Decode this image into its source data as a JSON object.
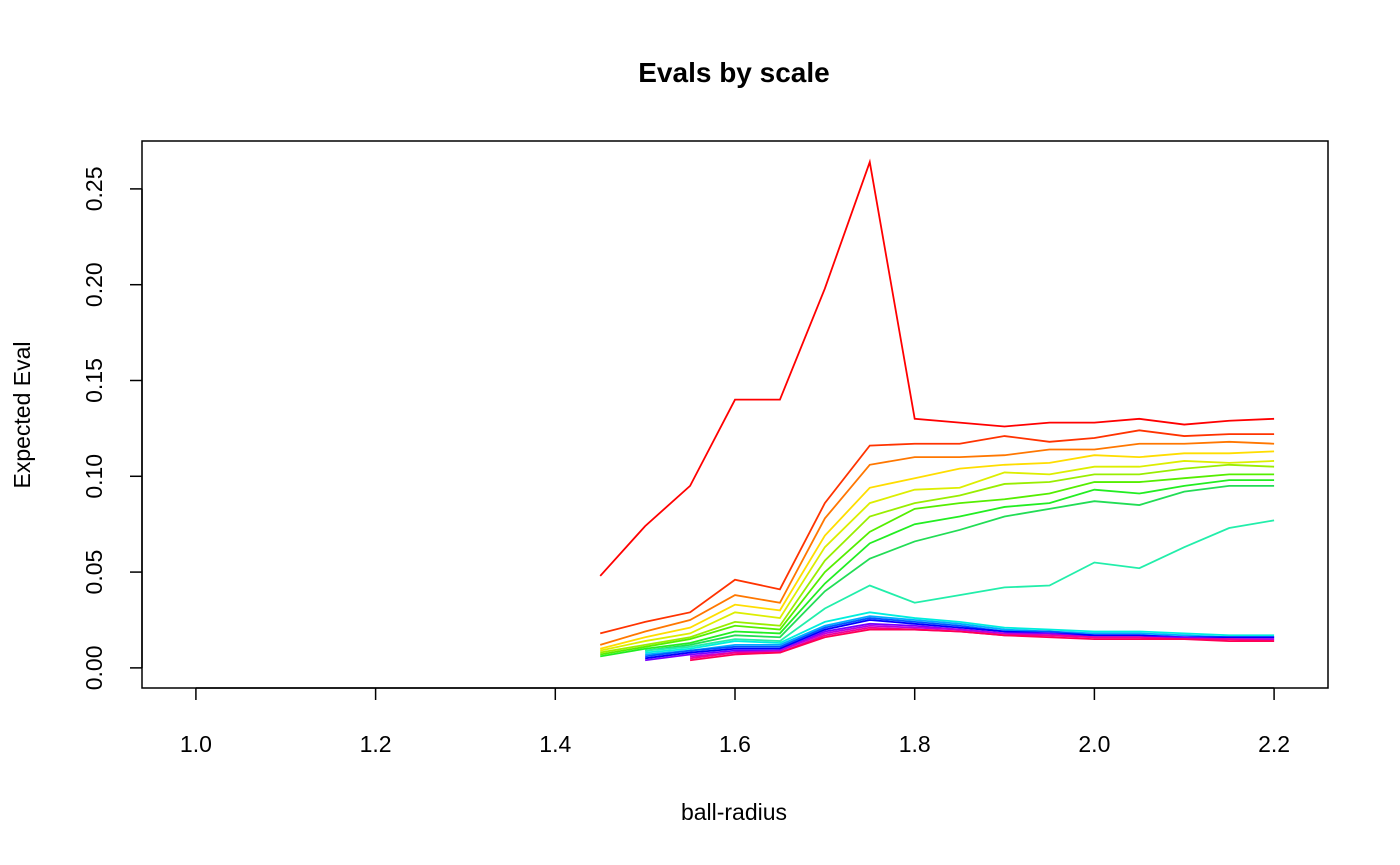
{
  "chart_data": {
    "type": "line",
    "title": "Evals by scale",
    "xlabel": "ball-radius",
    "ylabel": "Expected Eval",
    "xlim": [
      0.94,
      2.26
    ],
    "ylim": [
      -0.0105,
      0.275
    ],
    "xticks": [
      1.0,
      1.2,
      1.4,
      1.6,
      1.8,
      2.0,
      2.2
    ],
    "xtick_labels": [
      "1.0",
      "1.2",
      "1.4",
      "1.6",
      "1.8",
      "2.0",
      "2.2"
    ],
    "yticks": [
      0.0,
      0.05,
      0.1,
      0.15,
      0.2,
      0.25
    ],
    "ytick_labels": [
      "0.00",
      "0.05",
      "0.10",
      "0.15",
      "0.20",
      "0.25"
    ],
    "grid": false,
    "legend": "none",
    "x": [
      1.45,
      1.5,
      1.55,
      1.6,
      1.65,
      1.7,
      1.75,
      1.8,
      1.85,
      1.9,
      1.95,
      2.0,
      2.05,
      2.1,
      2.15,
      2.2
    ],
    "series": [
      {
        "color": "#FF0000",
        "values": [
          0.048,
          0.074,
          0.095,
          0.14,
          0.14,
          0.198,
          0.264,
          0.13,
          0.128,
          0.126,
          0.128,
          0.128,
          0.13,
          0.127,
          0.129,
          0.13
        ]
      },
      {
        "color": "#FF3300",
        "values": [
          0.018,
          0.024,
          0.029,
          0.046,
          0.041,
          0.086,
          0.116,
          0.117,
          0.117,
          0.121,
          0.118,
          0.12,
          0.124,
          0.121,
          0.122,
          0.122
        ]
      },
      {
        "color": "#FF7700",
        "values": [
          0.012,
          0.019,
          0.025,
          0.038,
          0.034,
          0.078,
          0.106,
          0.11,
          0.11,
          0.111,
          0.114,
          0.114,
          0.117,
          0.117,
          0.118,
          0.117
        ]
      },
      {
        "color": "#FFDD00",
        "values": [
          0.01,
          0.016,
          0.021,
          0.033,
          0.03,
          0.069,
          0.094,
          0.099,
          0.104,
          0.106,
          0.107,
          0.111,
          0.11,
          0.112,
          0.112,
          0.113
        ]
      },
      {
        "color": "#DDEE00",
        "values": [
          0.009,
          0.014,
          0.018,
          0.029,
          0.026,
          0.063,
          0.086,
          0.093,
          0.094,
          0.102,
          0.101,
          0.105,
          0.105,
          0.108,
          0.107,
          0.108
        ]
      },
      {
        "color": "#99EE00",
        "values": [
          0.008,
          0.012,
          0.016,
          0.024,
          0.022,
          0.056,
          0.079,
          0.086,
          0.09,
          0.096,
          0.097,
          0.101,
          0.101,
          0.104,
          0.106,
          0.105
        ]
      },
      {
        "color": "#55EE00",
        "values": [
          0.007,
          0.011,
          0.015,
          0.022,
          0.02,
          0.05,
          0.071,
          0.083,
          0.086,
          0.088,
          0.091,
          0.097,
          0.097,
          0.099,
          0.101,
          0.101
        ]
      },
      {
        "color": "#22EE22",
        "values": [
          0.006,
          0.01,
          0.013,
          0.019,
          0.018,
          0.044,
          0.065,
          0.075,
          0.079,
          0.084,
          0.086,
          0.093,
          0.091,
          0.095,
          0.098,
          0.098
        ]
      },
      {
        "color": "#22DD55",
        "values": [
          null,
          0.009,
          0.012,
          0.017,
          0.016,
          0.04,
          0.057,
          0.066,
          0.072,
          0.079,
          0.083,
          0.087,
          0.085,
          0.092,
          0.095,
          0.095
        ]
      },
      {
        "color": "#22EEAA",
        "values": [
          null,
          0.009,
          0.011,
          0.015,
          0.014,
          0.031,
          0.043,
          0.034,
          0.038,
          0.042,
          0.043,
          0.055,
          0.052,
          0.063,
          0.073,
          0.077
        ]
      },
      {
        "color": "#00EEDD",
        "values": [
          null,
          0.008,
          0.01,
          0.014,
          0.013,
          0.024,
          0.029,
          0.026,
          0.024,
          0.021,
          0.02,
          0.019,
          0.019,
          0.018,
          0.017,
          0.017
        ]
      },
      {
        "color": "#00AAFF",
        "values": [
          null,
          0.007,
          0.009,
          0.012,
          0.012,
          0.022,
          0.027,
          0.025,
          0.023,
          0.02,
          0.019,
          0.018,
          0.018,
          0.017,
          0.016,
          0.016
        ]
      },
      {
        "color": "#0055FF",
        "values": [
          null,
          0.006,
          0.009,
          0.011,
          0.011,
          0.021,
          0.026,
          0.024,
          0.022,
          0.019,
          0.019,
          0.017,
          0.017,
          0.016,
          0.016,
          0.016
        ]
      },
      {
        "color": "#0000FF",
        "values": [
          null,
          0.005,
          0.008,
          0.01,
          0.01,
          0.02,
          0.025,
          0.023,
          0.021,
          0.019,
          0.018,
          0.017,
          0.017,
          0.016,
          0.016,
          0.016
        ]
      },
      {
        "color": "#7700FF",
        "values": [
          null,
          0.004,
          0.007,
          0.009,
          0.009,
          0.019,
          0.023,
          0.022,
          0.02,
          0.018,
          0.018,
          0.016,
          0.016,
          0.016,
          0.015,
          0.015
        ]
      },
      {
        "color": "#BB00DD",
        "values": [
          null,
          null,
          0.006,
          0.008,
          0.009,
          0.018,
          0.022,
          0.021,
          0.02,
          0.018,
          0.017,
          0.016,
          0.016,
          0.015,
          0.015,
          0.015
        ]
      },
      {
        "color": "#EE0099",
        "values": [
          null,
          null,
          0.005,
          0.008,
          0.008,
          0.017,
          0.021,
          0.02,
          0.019,
          0.017,
          0.017,
          0.016,
          0.016,
          0.015,
          0.015,
          0.014
        ]
      },
      {
        "color": "#FF0055",
        "values": [
          null,
          null,
          0.004,
          0.007,
          0.008,
          0.016,
          0.02,
          0.02,
          0.019,
          0.017,
          0.016,
          0.015,
          0.015,
          0.015,
          0.014,
          0.014
        ]
      }
    ]
  }
}
